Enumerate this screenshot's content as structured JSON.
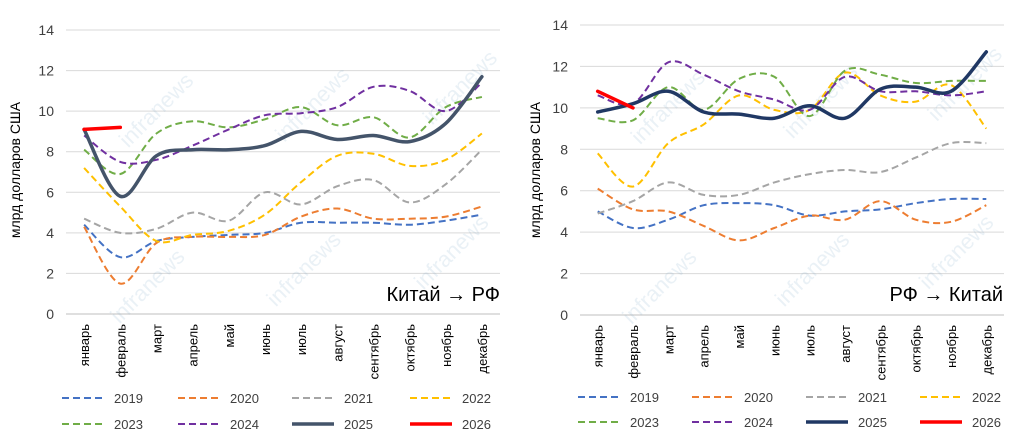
{
  "months": [
    "январь",
    "февраль",
    "март",
    "апрель",
    "май",
    "июнь",
    "июль",
    "август",
    "сентябрь",
    "октябрь",
    "ноябрь",
    "декабрь"
  ],
  "watermark": "infranews",
  "chart_data": [
    {
      "type": "line",
      "title": "Китай → РФ",
      "ylabel": "млрд долларов США",
      "ylim": [
        0,
        14
      ],
      "yticks": [
        "0",
        "2",
        "4",
        "6",
        "8",
        "10",
        "12",
        "14"
      ],
      "grid": true,
      "legend_position": "bottom",
      "series": [
        {
          "name": "2019",
          "color": "#4472C4",
          "dash": true,
          "width": 2,
          "values": [
            4.4,
            2.8,
            3.6,
            3.8,
            3.9,
            4.0,
            4.5,
            4.5,
            4.5,
            4.4,
            4.6,
            4.9
          ]
        },
        {
          "name": "2020",
          "color": "#ED7D31",
          "dash": true,
          "width": 2,
          "values": [
            4.3,
            1.5,
            3.5,
            3.8,
            3.8,
            3.9,
            4.8,
            5.2,
            4.7,
            4.7,
            4.8,
            5.3
          ]
        },
        {
          "name": "2021",
          "color": "#A5A5A5",
          "dash": true,
          "width": 2,
          "values": [
            4.7,
            4.0,
            4.2,
            5.0,
            4.6,
            6.0,
            5.4,
            6.3,
            6.6,
            5.5,
            6.4,
            8.1
          ]
        },
        {
          "name": "2022",
          "color": "#FFC000",
          "dash": true,
          "width": 2,
          "values": [
            7.2,
            5.3,
            3.6,
            3.9,
            4.1,
            4.9,
            6.5,
            7.8,
            7.9,
            7.3,
            7.6,
            8.9
          ]
        },
        {
          "name": "2023",
          "color": "#70AD47",
          "dash": true,
          "width": 2,
          "values": [
            8.1,
            6.9,
            8.9,
            9.5,
            9.2,
            9.6,
            10.2,
            9.3,
            9.7,
            8.7,
            10.2,
            10.7
          ]
        },
        {
          "name": "2024",
          "color": "#7030A0",
          "dash": true,
          "width": 2,
          "values": [
            8.8,
            7.5,
            7.6,
            8.3,
            9.1,
            9.8,
            9.9,
            10.2,
            11.2,
            11.0,
            10.0,
            11.4
          ]
        },
        {
          "name": "2025",
          "color": "#44546A",
          "dash": false,
          "width": 3.5,
          "values": [
            9.1,
            5.8,
            7.8,
            8.1,
            8.1,
            8.3,
            9.0,
            8.6,
            8.8,
            8.5,
            9.4,
            11.7
          ]
        },
        {
          "name": "2026",
          "color": "#FF0000",
          "dash": false,
          "width": 3.5,
          "values": [
            9.1,
            9.2
          ]
        }
      ]
    },
    {
      "type": "line",
      "title": "РФ → Китай",
      "ylabel": "млрд долларов США",
      "ylim": [
        0,
        14
      ],
      "yticks": [
        "0",
        "2",
        "4",
        "6",
        "8",
        "10",
        "12",
        "14"
      ],
      "grid": true,
      "legend_position": "bottom",
      "series": [
        {
          "name": "2019",
          "color": "#4472C4",
          "dash": true,
          "width": 2,
          "values": [
            5.0,
            4.2,
            4.6,
            5.3,
            5.4,
            5.3,
            4.8,
            5.0,
            5.1,
            5.4,
            5.6,
            5.6
          ]
        },
        {
          "name": "2020",
          "color": "#ED7D31",
          "dash": true,
          "width": 2,
          "values": [
            6.1,
            5.1,
            5.0,
            4.3,
            3.6,
            4.2,
            4.8,
            4.6,
            5.5,
            4.6,
            4.5,
            5.3
          ]
        },
        {
          "name": "2021",
          "color": "#A5A5A5",
          "dash": true,
          "width": 2,
          "values": [
            4.9,
            5.5,
            6.4,
            5.8,
            5.8,
            6.4,
            6.8,
            7.0,
            6.9,
            7.6,
            8.3,
            8.3
          ]
        },
        {
          "name": "2022",
          "color": "#FFC000",
          "dash": true,
          "width": 2,
          "values": [
            7.8,
            6.2,
            8.3,
            9.2,
            10.6,
            9.9,
            9.9,
            11.7,
            10.6,
            10.3,
            11.1,
            9.0
          ]
        },
        {
          "name": "2023",
          "color": "#70AD47",
          "dash": true,
          "width": 2,
          "values": [
            9.5,
            9.4,
            11.0,
            9.9,
            11.4,
            11.5,
            9.6,
            11.8,
            11.6,
            11.2,
            11.3,
            11.3
          ]
        },
        {
          "name": "2024",
          "color": "#7030A0",
          "dash": true,
          "width": 2,
          "values": [
            10.6,
            10.2,
            12.2,
            11.6,
            10.8,
            10.4,
            9.9,
            11.5,
            10.8,
            10.8,
            10.6,
            10.8
          ]
        },
        {
          "name": "2025",
          "color": "#203864",
          "dash": false,
          "width": 3.5,
          "values": [
            9.8,
            10.2,
            10.8,
            9.8,
            9.7,
            9.5,
            10.1,
            9.5,
            10.9,
            11.0,
            10.8,
            12.7
          ]
        },
        {
          "name": "2026",
          "color": "#FF0000",
          "dash": false,
          "width": 3.5,
          "values": [
            10.8,
            10.0
          ]
        }
      ]
    }
  ]
}
